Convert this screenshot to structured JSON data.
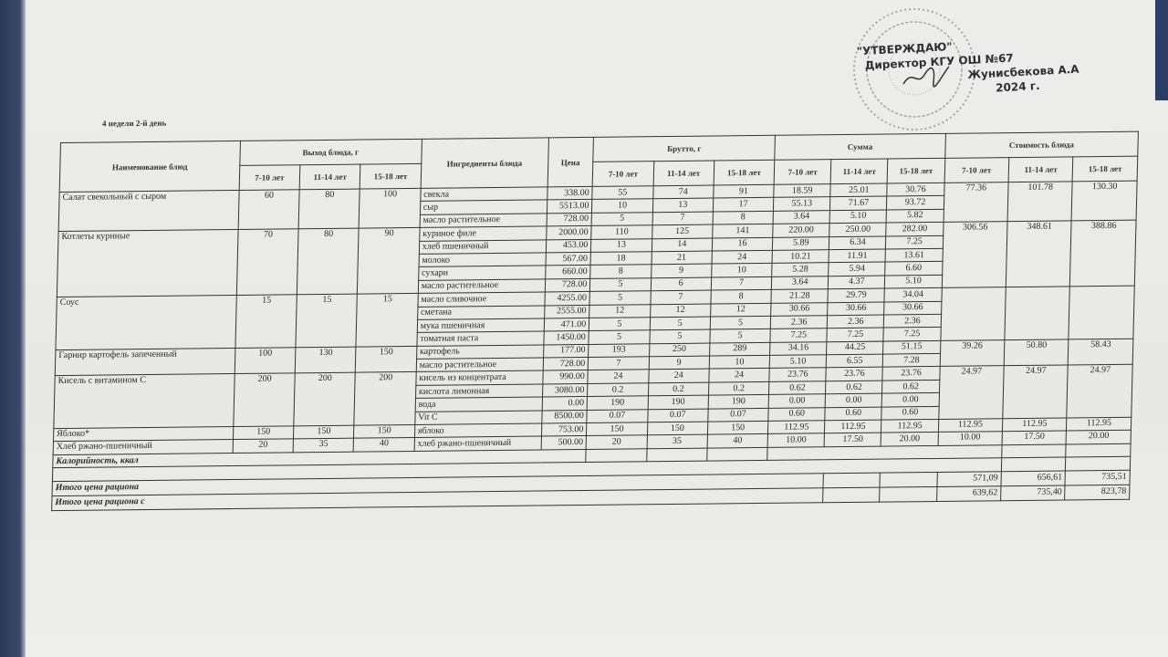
{
  "subtitle": "4 недели 2-й день",
  "approval": {
    "line1": "\"УТВЕРЖДАЮ\"",
    "line2": "Директор КГУ ОШ №67",
    "line3": "Жунисбекова А.А",
    "line4": "2024 г."
  },
  "headers": {
    "dish_name": "Наименование блюд",
    "yield": "Выход блюда, г",
    "ingredients": "Ингредиенты блюда",
    "price": "Цена",
    "brutto": "Брутто, г",
    "sum": "Сумма",
    "cost": "Стоимость блюда",
    "ages": [
      "7-10 лет",
      "11-14 лет",
      "15-18 лет"
    ]
  },
  "dishes": [
    {
      "name": "Салат свекольный с сыром",
      "yield": [
        "60",
        "80",
        "100"
      ],
      "cost": [
        "77.36",
        "101.78",
        "130.30"
      ],
      "ingredients": [
        {
          "name": "свекла",
          "price": "338.00",
          "brutto": [
            "55",
            "74",
            "91"
          ],
          "sum": [
            "18.59",
            "25.01",
            "30.76"
          ]
        },
        {
          "name": "сыр",
          "price": "5513.00",
          "brutto": [
            "10",
            "13",
            "17"
          ],
          "sum": [
            "55.13",
            "71.67",
            "93.72"
          ]
        },
        {
          "name": "масло растительное",
          "price": "728.00",
          "brutto": [
            "5",
            "7",
            "8"
          ],
          "sum": [
            "3.64",
            "5.10",
            "5.82"
          ]
        }
      ]
    },
    {
      "name": "Котлеты куриные",
      "yield": [
        "70",
        "80",
        "90"
      ],
      "cost": [
        "306.56",
        "348.61",
        "388.86"
      ],
      "ingredients": [
        {
          "name": "куриное филе",
          "price": "2000.00",
          "brutto": [
            "110",
            "125",
            "141"
          ],
          "sum": [
            "220.00",
            "250.00",
            "282.00"
          ]
        },
        {
          "name": "хлеб пшеничный",
          "price": "453.00",
          "brutto": [
            "13",
            "14",
            "16"
          ],
          "sum": [
            "5.89",
            "6.34",
            "7.25"
          ]
        },
        {
          "name": "молоко",
          "price": "567.00",
          "brutto": [
            "18",
            "21",
            "24"
          ],
          "sum": [
            "10.21",
            "11.91",
            "13.61"
          ]
        },
        {
          "name": "сухари",
          "price": "660.00",
          "brutto": [
            "8",
            "9",
            "10"
          ],
          "sum": [
            "5.28",
            "5.94",
            "6.60"
          ]
        },
        {
          "name": "масло растительное",
          "price": "728.00",
          "brutto": [
            "5",
            "6",
            "7"
          ],
          "sum": [
            "3.64",
            "4.37",
            "5.10"
          ]
        }
      ]
    },
    {
      "name": "Соус",
      "yield": [
        "15",
        "15",
        "15"
      ],
      "cost": [
        "",
        "",
        ""
      ],
      "ingredients": [
        {
          "name": "масло сливочное",
          "price": "4255.00",
          "brutto": [
            "5",
            "7",
            "8"
          ],
          "sum": [
            "21.28",
            "29.79",
            "34.04"
          ]
        },
        {
          "name": "сметана",
          "price": "2555.00",
          "brutto": [
            "12",
            "12",
            "12"
          ],
          "sum": [
            "30.66",
            "30.66",
            "30.66"
          ]
        },
        {
          "name": "мука пшеничная",
          "price": "471.00",
          "brutto": [
            "5",
            "5",
            "5"
          ],
          "sum": [
            "2.36",
            "2.36",
            "2.36"
          ]
        },
        {
          "name": "томатная паста",
          "price": "1450.00",
          "brutto": [
            "5",
            "5",
            "5"
          ],
          "sum": [
            "7.25",
            "7.25",
            "7.25"
          ]
        }
      ]
    },
    {
      "name": "Гарнир картофель запеченный",
      "yield": [
        "100",
        "130",
        "150"
      ],
      "cost": [
        "39.26",
        "50.80",
        "58.43"
      ],
      "ingredients": [
        {
          "name": "картофель",
          "price": "177.00",
          "brutto": [
            "193",
            "250",
            "289"
          ],
          "sum": [
            "34.16",
            "44.25",
            "51.15"
          ]
        },
        {
          "name": "масло растительное",
          "price": "728.00",
          "brutto": [
            "7",
            "9",
            "10"
          ],
          "sum": [
            "5.10",
            "6.55",
            "7.28"
          ]
        }
      ]
    },
    {
      "name": "Кисель с витамином С",
      "yield": [
        "200",
        "200",
        "200"
      ],
      "cost": [
        "24.97",
        "24.97",
        "24.97"
      ],
      "ingredients": [
        {
          "name": "кисель из концентрата",
          "price": "990.00",
          "brutto": [
            "24",
            "24",
            "24"
          ],
          "sum": [
            "23.76",
            "23.76",
            "23.76"
          ]
        },
        {
          "name": "кислота лимонная",
          "price": "3080.00",
          "brutto": [
            "0.2",
            "0.2",
            "0.2"
          ],
          "sum": [
            "0.62",
            "0.62",
            "0.62"
          ]
        },
        {
          "name": "вода",
          "price": "0.00",
          "brutto": [
            "190",
            "190",
            "190"
          ],
          "sum": [
            "0.00",
            "0.00",
            "0.00"
          ]
        },
        {
          "name": "Vit C",
          "price": "8500.00",
          "brutto": [
            "0.07",
            "0.07",
            "0.07"
          ],
          "sum": [
            "0.60",
            "0.60",
            "0.60"
          ]
        }
      ]
    },
    {
      "name": "Яблоко*",
      "yield": [
        "150",
        "150",
        "150"
      ],
      "cost": [
        "112.95",
        "112.95",
        "112.95"
      ],
      "ingredients": [
        {
          "name": "яблоко",
          "price": "753.00",
          "brutto": [
            "150",
            "150",
            "150"
          ],
          "sum": [
            "112.95",
            "112.95",
            "112.95"
          ]
        }
      ]
    },
    {
      "name": "Хлеб ржано-пшеничный",
      "yield": [
        "20",
        "35",
        "40"
      ],
      "cost": [
        "10.00",
        "17.50",
        "20.00"
      ],
      "ingredients": [
        {
          "name": "хлеб ржано-пшеничный",
          "price": "500.00",
          "brutto": [
            "20",
            "35",
            "40"
          ],
          "sum": [
            "10.00",
            "17.50",
            "20.00"
          ]
        }
      ]
    }
  ],
  "calories_label": "Калорийность, ккал",
  "totals": [
    {
      "label": "Итого цена рациона",
      "values": [
        "571,09",
        "656,61",
        "735,51"
      ]
    },
    {
      "label": "Итого цена рациона с",
      "values": [
        "639,62",
        "735,40",
        "823,78"
      ]
    }
  ]
}
